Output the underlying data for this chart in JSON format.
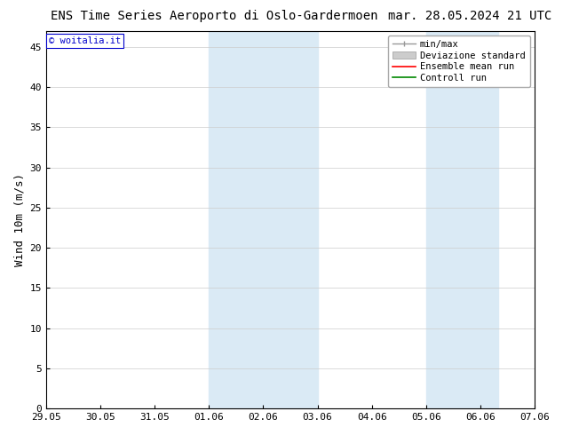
{
  "title_left": "ENS Time Series Aeroporto di Oslo-Gardermoen",
  "title_right": "mar. 28.05.2024 21 UTC",
  "ylabel": "Wind 10m (m/s)",
  "xlim_dates": [
    "29.05",
    "30.05",
    "31.05",
    "01.06",
    "02.06",
    "03.06",
    "04.06",
    "05.06",
    "06.06",
    "07.06"
  ],
  "xlim": [
    0,
    9
  ],
  "ylim": [
    0,
    47
  ],
  "yticks": [
    0,
    5,
    10,
    15,
    20,
    25,
    30,
    35,
    40,
    45
  ],
  "night_bands": [
    {
      "xmin": 3.0,
      "xmax": 5.0
    },
    {
      "xmin": 7.0,
      "xmax": 8.33
    }
  ],
  "night_band_color": "#daeaf5",
  "watermark_text": "© woitalia.it",
  "watermark_color": "#0000cc",
  "legend_items": [
    {
      "label": "min/max",
      "color": "#999999"
    },
    {
      "label": "Deviazione standard",
      "color": "#cccccc"
    },
    {
      "label": "Ensemble mean run",
      "color": "#ff0000"
    },
    {
      "label": "Controll run",
      "color": "#008800"
    }
  ],
  "background_color": "#ffffff",
  "title_fontsize": 10,
  "tick_fontsize": 8,
  "ylabel_fontsize": 9,
  "legend_fontsize": 7.5
}
